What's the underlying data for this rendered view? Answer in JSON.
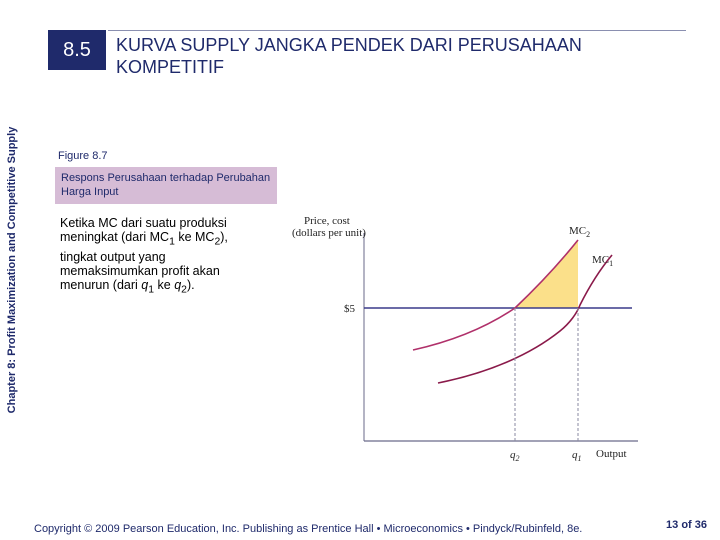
{
  "slide": {
    "side_label": "Chapter 8: Profit Maximization and Competitive Supply",
    "section_number": "8.5",
    "title": "KURVA SUPPLY JANGKA PENDEK DARI PERUSAHAAN KOMPETITIF",
    "figure_label": "Figure 8.7",
    "figure_caption": "Respons Perusahaan terhadap Perubahan Harga Input",
    "body": {
      "part1": "Ketika MC dari suatu produksi meningkat (dari MC",
      "sub1": "1",
      "part2": " ke MC",
      "sub2": "2",
      "part3": "), tingkat output yang memaksimumkan profit akan menurun (dari ",
      "q1": "q",
      "q1_sub": "1",
      "part4": " ke ",
      "q2": "q",
      "q2_sub": "2",
      "part5": ")."
    },
    "footer": "Copyright © 2009 Pearson Education, Inc. Publishing as Prentice Hall • Microeconomics • Pindyck/Rubinfeld, 8e.",
    "page": {
      "current": "13",
      "of_label": "of",
      "total": "36"
    }
  },
  "diagram": {
    "y_axis_label_line1": "Price, cost",
    "y_axis_label_line2": "(dollars per unit)",
    "x_axis_label": "Output",
    "price_label": "$5",
    "mc2_label": "MC",
    "mc2_sub": "2",
    "mc1_label": "MC",
    "mc1_sub": "1",
    "q2_label": "q",
    "q2_sub": "2",
    "q1_label": "q",
    "q1_sub": "1",
    "colors": {
      "axis": "#6a6a8a",
      "price_line": "#3a3a8a",
      "mc2": "#b0306a",
      "mc1": "#8a1a4a",
      "shaded": "#fbe08a"
    }
  }
}
